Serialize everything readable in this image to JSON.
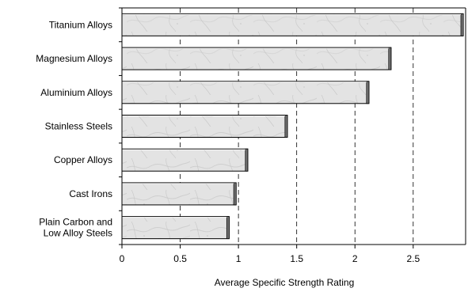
{
  "chart_data": {
    "type": "bar",
    "orientation": "horizontal",
    "categories": [
      "Titanium Alloys",
      "Magnesium Alloys",
      "Aluminium Alloys",
      "Stainless Steels",
      "Copper Alloys",
      "Cast Irons",
      "Plain Carbon and Low Alloy Steels"
    ],
    "values": [
      2.93,
      2.31,
      2.12,
      1.42,
      1.08,
      0.98,
      0.92
    ],
    "title": "",
    "xlabel": "Average Specific Strength Rating",
    "ylabel": "",
    "xlim": [
      0,
      2.95
    ],
    "x_ticks": [
      0,
      0.5,
      1,
      1.5,
      2,
      2.5
    ],
    "x_tick_labels": [
      "0",
      "0.5",
      "1",
      "1.5",
      "2",
      "2.5"
    ],
    "grid": "vertical dashed lines at major ticks",
    "legend": "none",
    "bar_fill": "light gray marble texture with darker shadow edge"
  }
}
